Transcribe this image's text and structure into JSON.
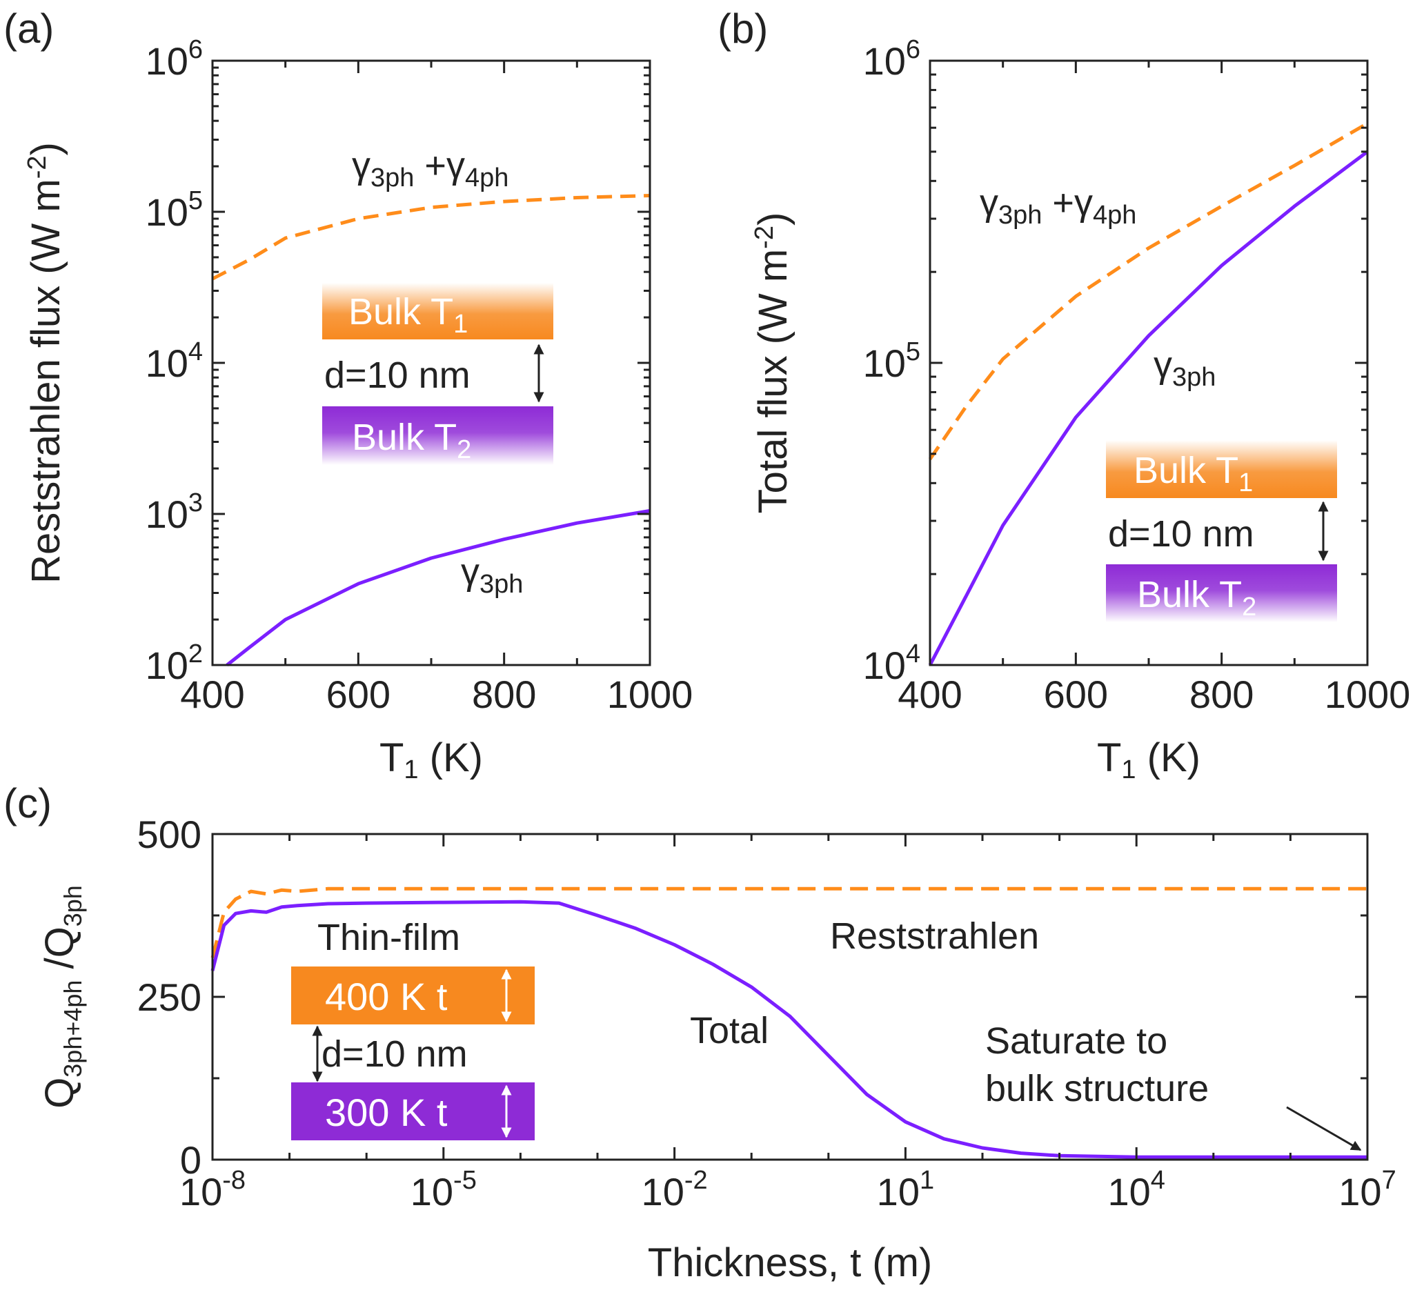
{
  "colors": {
    "orange": "#ff8c1a",
    "purple": "#7b1fff",
    "orange_box": "#f7891f",
    "purple_box": "#8e2bd6",
    "axis": "#222222"
  },
  "chart_data": [
    {
      "panel_label": "(a)",
      "type": "line",
      "yscale": "log",
      "xlabel_main": "T",
      "xlabel_sub": "1",
      "xlabel_unit": " (K)",
      "ylabel_main": "Reststrahlen flux (W m",
      "ylabel_sup": "-2",
      "ylabel_end": ")",
      "xlim": [
        400,
        1000
      ],
      "ylim_exp": [
        2,
        6
      ],
      "xticks": [
        {
          "value": 400,
          "label": "400"
        },
        {
          "value": 600,
          "label": "600"
        },
        {
          "value": 800,
          "label": "800"
        },
        {
          "value": 1000,
          "label": "1000"
        }
      ],
      "yticks": [
        {
          "exp": 2,
          "base": "10",
          "sup": "2"
        },
        {
          "exp": 3,
          "base": "10",
          "sup": "3"
        },
        {
          "exp": 4,
          "base": "10",
          "sup": "4"
        },
        {
          "exp": 5,
          "base": "10",
          "sup": "5"
        },
        {
          "exp": 6,
          "base": "10",
          "sup": "6"
        }
      ],
      "series": [
        {
          "name": "γ3ph+γ4ph",
          "style": "dashed",
          "color": "#ff8c1a",
          "x": [
            400,
            450,
            500,
            600,
            700,
            800,
            900,
            1000
          ],
          "y": [
            36000,
            48000,
            67000,
            90000,
            107000,
            117000,
            124000,
            128000
          ]
        },
        {
          "name": "γ3ph",
          "style": "solid",
          "color": "#7b1fff",
          "x": [
            420,
            450,
            500,
            600,
            700,
            800,
            900,
            1000
          ],
          "y": [
            100,
            130,
            200,
            345,
            510,
            680,
            870,
            1050
          ]
        }
      ],
      "annotations": [
        {
          "key": "a1",
          "main": "γ",
          "sub": "3ph",
          "op": " +",
          "main2": "γ",
          "sub2": "4ph"
        },
        {
          "key": "a2",
          "main": "γ",
          "sub": "3ph"
        }
      ],
      "inset": {
        "top_box": {
          "text": "Bulk  T",
          "sub": "1"
        },
        "gap": "d=10 nm",
        "bottom_box": {
          "text": "Bulk  T",
          "sub": "2"
        }
      }
    },
    {
      "panel_label": "(b)",
      "type": "line",
      "yscale": "log",
      "xlabel_main": "T",
      "xlabel_sub": "1",
      "xlabel_unit": " (K)",
      "ylabel_main": "Total flux (W m",
      "ylabel_sup": "-2",
      "ylabel_end": ")",
      "xlim": [
        400,
        1000
      ],
      "ylim_exp": [
        4,
        6
      ],
      "xticks": [
        {
          "value": 400,
          "label": "400"
        },
        {
          "value": 600,
          "label": "600"
        },
        {
          "value": 800,
          "label": "800"
        },
        {
          "value": 1000,
          "label": "1000"
        }
      ],
      "yticks": [
        {
          "exp": 4,
          "base": "10",
          "sup": "4"
        },
        {
          "exp": 5,
          "base": "10",
          "sup": "5"
        },
        {
          "exp": 6,
          "base": "10",
          "sup": "6"
        }
      ],
      "series": [
        {
          "name": "γ3ph+γ4ph",
          "style": "dashed",
          "color": "#ff8c1a",
          "x": [
            400,
            450,
            500,
            600,
            700,
            800,
            900,
            1000
          ],
          "y": [
            48000,
            72000,
            103000,
            166000,
            240000,
            330000,
            450000,
            620000
          ]
        },
        {
          "name": "γ3ph",
          "style": "solid",
          "color": "#7b1fff",
          "x": [
            400,
            450,
            500,
            600,
            700,
            800,
            900,
            1000
          ],
          "y": [
            10000,
            17000,
            29000,
            66000,
            123000,
            210000,
            330000,
            500000
          ]
        }
      ],
      "annotations": [
        {
          "key": "b1",
          "main": "γ",
          "sub": "3ph",
          "op": " +",
          "main2": "γ",
          "sub2": "4ph"
        },
        {
          "key": "b2",
          "main": "γ",
          "sub": "3ph"
        }
      ],
      "inset": {
        "top_box": {
          "text": "Bulk  T",
          "sub": "1"
        },
        "gap": "d=10 nm",
        "bottom_box": {
          "text": "Bulk  T",
          "sub": "2"
        }
      }
    },
    {
      "panel_label": "(c)",
      "type": "line",
      "xscale": "log",
      "xlabel": "Thickness, t (m)",
      "ylabel_main": "Q",
      "ylabel_sub": "3ph+4ph",
      "ylabel_mid": " /Q",
      "ylabel_sub2": "3ph",
      "xlim_exp": [
        -8,
        7
      ],
      "ylim": [
        0,
        500
      ],
      "xticks": [
        {
          "exp": -8,
          "base": "10",
          "sup": "-8"
        },
        {
          "exp": -5,
          "base": "10",
          "sup": "-5"
        },
        {
          "exp": -2,
          "base": "10",
          "sup": "-2"
        },
        {
          "exp": 1,
          "base": "10",
          "sup": "1"
        },
        {
          "exp": 4,
          "base": "10",
          "sup": "4"
        },
        {
          "exp": 7,
          "base": "10",
          "sup": "7"
        }
      ],
      "yticks": [
        {
          "value": 0,
          "label": "0"
        },
        {
          "value": 250,
          "label": "250"
        },
        {
          "value": 500,
          "label": "500"
        }
      ],
      "series": [
        {
          "name": "Reststrahlen",
          "style": "dashed",
          "color": "#ff8c1a",
          "x_exp": [
            -8,
            -7.85,
            -7.7,
            -7.5,
            -7.3,
            -7.1,
            -6.9,
            -6.5,
            -6,
            -5,
            -4,
            -3,
            -2,
            0,
            2,
            4,
            7
          ],
          "y": [
            310,
            380,
            400,
            412,
            408,
            414,
            412,
            416,
            416,
            416,
            416,
            416,
            416,
            416,
            416,
            416,
            416
          ]
        },
        {
          "name": "Total",
          "style": "solid",
          "color": "#7b1fff",
          "x_exp": [
            -8,
            -7.85,
            -7.7,
            -7.5,
            -7.3,
            -7.1,
            -6.9,
            -6.5,
            -6,
            -5,
            -4,
            -3.5,
            -3,
            -2.5,
            -2,
            -1.5,
            -1,
            -0.5,
            0,
            0.5,
            1,
            1.5,
            2,
            2.5,
            3,
            4,
            5,
            7
          ],
          "y": [
            290,
            360,
            378,
            382,
            380,
            388,
            390,
            393,
            394,
            395,
            396,
            394,
            375,
            355,
            330,
            300,
            265,
            220,
            160,
            100,
            58,
            32,
            18,
            10,
            6,
            4,
            4,
            4
          ]
        }
      ],
      "annotations": [
        {
          "key": "c1",
          "text": "Reststrahlen"
        },
        {
          "key": "c2",
          "text": "Total"
        },
        {
          "key": "c3",
          "line1": "Saturate to",
          "line2": "bulk structure"
        }
      ],
      "inset": {
        "title": "Thin-film",
        "top_box": {
          "text": "400 K t"
        },
        "gap": "d=10 nm",
        "bottom_box": {
          "text": "300 K t"
        }
      }
    }
  ]
}
